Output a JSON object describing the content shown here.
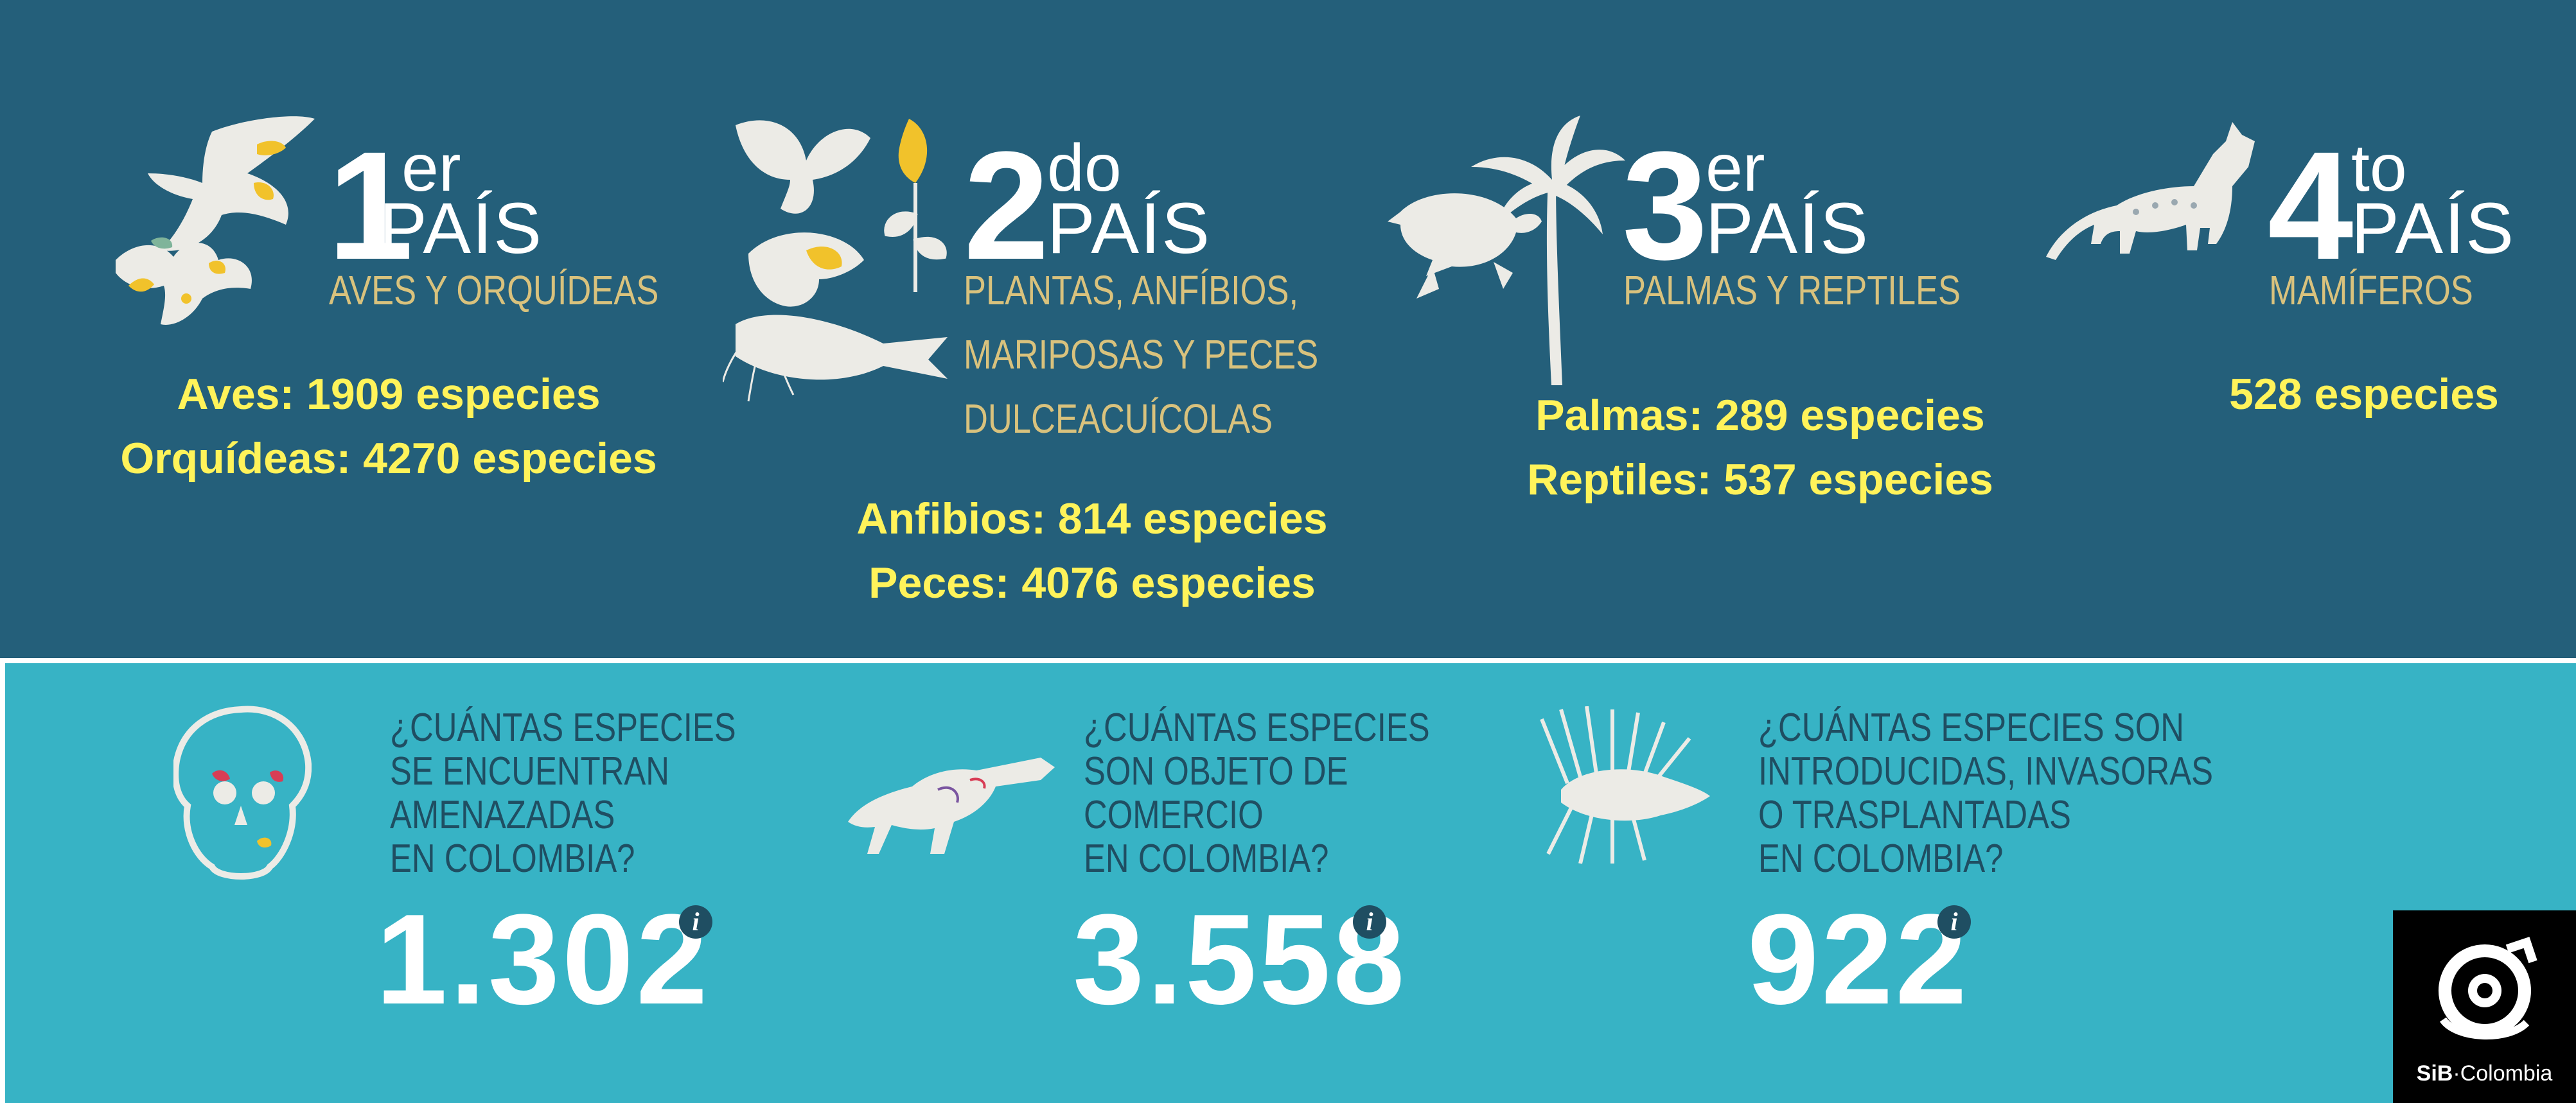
{
  "rankings": [
    {
      "rank_num": "1",
      "rank_suffix": "er",
      "country_word": "PAÍS",
      "categories": [
        "AVES Y ORQUÍDEAS"
      ],
      "stats": [
        "Aves: 1909 especies",
        "Orquídeas: 4270 especies"
      ]
    },
    {
      "rank_num": "2",
      "rank_suffix": "do",
      "country_word": "PAÍS",
      "categories": [
        "PLANTAS, ANFÍBIOS,",
        "MARIPOSAS Y PECES",
        "DULCEACUÍCOLAS"
      ],
      "stats": [
        "Anfibios: 814 especies",
        "Peces: 4076 especies"
      ]
    },
    {
      "rank_num": "3",
      "rank_suffix": "er",
      "country_word": "PAÍS",
      "categories": [
        "PALMAS Y REPTILES"
      ],
      "stats": [
        "Palmas: 289 especies",
        "Reptiles: 537 especies"
      ]
    },
    {
      "rank_num": "4",
      "rank_suffix": "to",
      "country_word": "PAÍS",
      "categories": [
        "MAMÍFEROS"
      ],
      "stats": [
        "528 especies"
      ]
    }
  ],
  "questions": [
    {
      "lines": [
        "¿CUÁNTAS ESPECIES",
        "SE ENCUENTRAN",
        "AMENAZADAS",
        "EN COLOMBIA?"
      ],
      "value": "1.302",
      "info_icon": "i",
      "icon": "monkey-icon"
    },
    {
      "lines": [
        "¿CUÁNTAS ESPECIES",
        "SON OBJETO DE",
        "COMERCIO",
        "EN COLOMBIA?"
      ],
      "value": "3.558",
      "info_icon": "i",
      "icon": "crocodile-icon"
    },
    {
      "lines": [
        "¿CUÁNTAS ESPECIES SON",
        "INTRODUCIDAS, INVASORAS",
        "O TRASPLANTADAS",
        "EN COLOMBIA?"
      ],
      "value": "922",
      "info_icon": "i",
      "icon": "lionfish-icon"
    }
  ],
  "logo": {
    "brand": "SiB",
    "separator": "·",
    "name": "Colombia"
  },
  "colors": {
    "top_background": "#245f7a",
    "bottom_background": "#37b3c5",
    "stat_text": "#fff35a",
    "category_text": "#d9c27d",
    "question_text": "#1f4e62",
    "logo_background": "#000000"
  }
}
